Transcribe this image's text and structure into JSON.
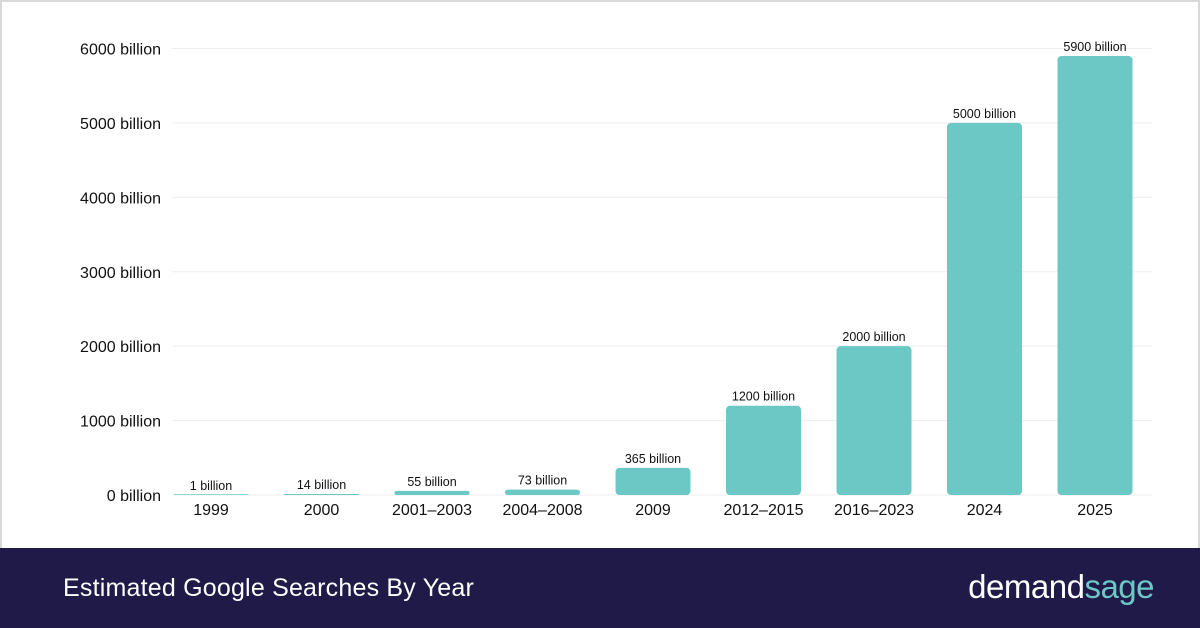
{
  "chart_data": {
    "type": "bar",
    "title": "Estimated Google Searches By Year",
    "xlabel": "",
    "ylabel": "",
    "categories": [
      "1999",
      "2000",
      "2001–2003",
      "2004–2008",
      "2009",
      "2012–2015",
      "2016–2023",
      "2024",
      "2025"
    ],
    "values": [
      1,
      14,
      55,
      73,
      365,
      1200,
      2000,
      5000,
      5900
    ],
    "data_labels": [
      "1 billion",
      "14 billion",
      "55 billion",
      "73 billion",
      "365 billion",
      "1200 billion",
      "2000 billion",
      "5000 billion",
      "5900 billion"
    ],
    "y_ticks": [
      0,
      1000,
      2000,
      3000,
      4000,
      5000,
      6000
    ],
    "y_tick_labels": [
      "0 billion",
      "1000 billion",
      "2000 billion",
      "3000 billion",
      "4000 billion",
      "5000 billion",
      "6000 billion"
    ],
    "ylim": [
      0,
      6000
    ],
    "grid": true,
    "colors": {
      "bar": "#6cc8c5",
      "grid": "#eeeeee",
      "text": "#111111"
    }
  },
  "footer": {
    "title": "Estimated Google Searches By Year",
    "background": "#1f1a48"
  },
  "brand": {
    "part1": "demand",
    "part2": "sage",
    "color1": "#ffffff",
    "color2": "#6cc8c5"
  }
}
